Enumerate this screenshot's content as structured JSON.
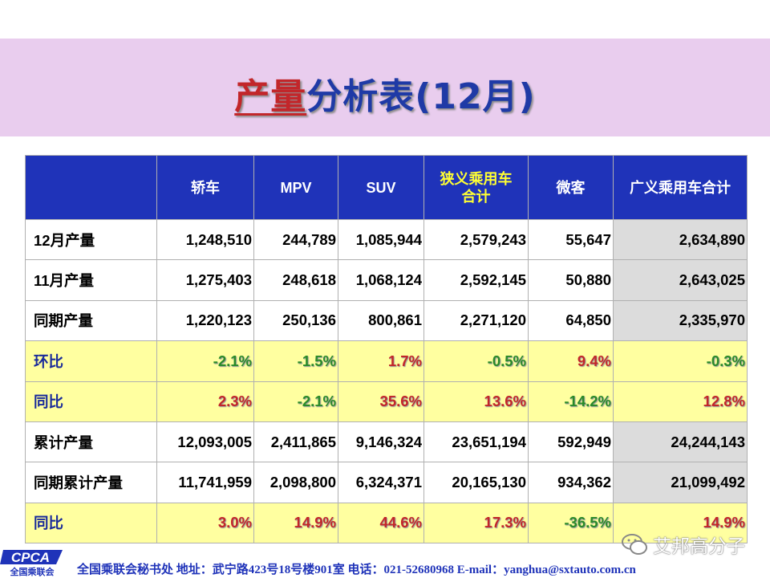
{
  "title": {
    "accent": "产量",
    "rest": "分析表(12月)"
  },
  "table": {
    "headers": [
      "",
      "轿车",
      "MPV",
      "SUV",
      "狭义乘用车\n合计",
      "微客",
      "广义乘用车合计"
    ],
    "rows": [
      {
        "label": "12月产量",
        "values": [
          "1,248,510",
          "244,789",
          "1,085,944",
          "2,579,243",
          "55,647",
          "2,634,890"
        ]
      },
      {
        "label": "11月产量",
        "values": [
          "1,275,403",
          "248,618",
          "1,068,124",
          "2,592,145",
          "50,880",
          "2,643,025"
        ]
      },
      {
        "label": "同期产量",
        "values": [
          "1,220,123",
          "250,136",
          "800,861",
          "2,271,120",
          "64,850",
          "2,335,970"
        ]
      },
      {
        "label": "环比",
        "values": [
          "-2.1%",
          "-1.5%",
          "1.7%",
          "-0.5%",
          "9.4%",
          "-0.3%"
        ]
      },
      {
        "label": "同比",
        "values": [
          "2.3%",
          "-2.1%",
          "35.6%",
          "13.6%",
          "-14.2%",
          "12.8%"
        ]
      },
      {
        "label": "累计产量",
        "values": [
          "12,093,005",
          "2,411,865",
          "9,146,324",
          "23,651,194",
          "592,949",
          "24,244,143"
        ]
      },
      {
        "label": "同期累计产量",
        "values": [
          "11,741,959",
          "2,098,800",
          "6,324,371",
          "20,165,130",
          "934,362",
          "21,099,492"
        ]
      },
      {
        "label": "同比",
        "values": [
          "3.0%",
          "14.9%",
          "44.6%",
          "17.3%",
          "-36.5%",
          "14.9%"
        ]
      }
    ]
  },
  "footer": {
    "logo_text": "CPCA",
    "logo_sub": "全国乘联会",
    "info": "全国乘联会秘书处  地址：武宁路423号18号楼901室  电话：021-52680968  E-mail：yanghua@sxtauto.com.cn"
  },
  "watermark": {
    "text": "艾邦高分子",
    "icon": "wechat-icon"
  },
  "colors": {
    "header_bg": "#1f33b9",
    "title_band": "#e9cdee",
    "percent_row_bg": "#ffffa0",
    "positive": "#c2262a",
    "negative": "#2a8a2a",
    "highlight_col": "#dcdcdc"
  }
}
